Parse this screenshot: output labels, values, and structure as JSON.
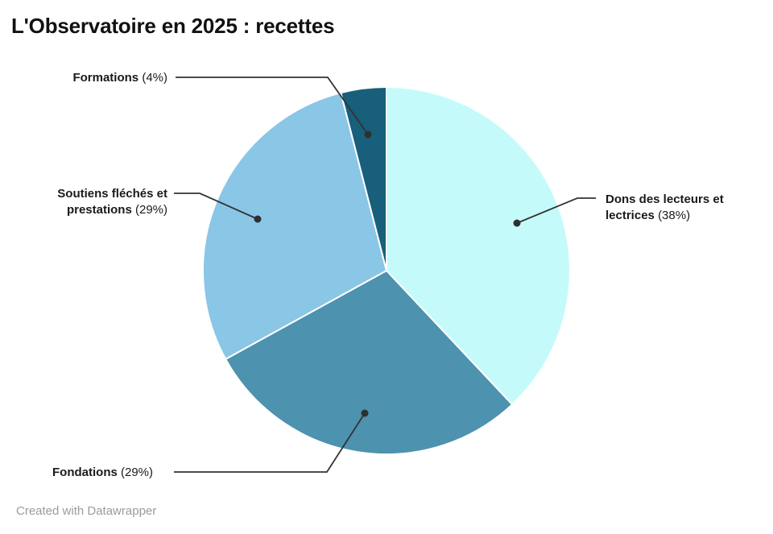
{
  "header": {
    "title": "L'Observatoire en 2025 : recettes"
  },
  "footer": {
    "credit": "Created with Datawrapper"
  },
  "chart_data": {
    "type": "pie",
    "title": "L'Observatoire en 2025 : recettes",
    "unit": "%",
    "start_angle_deg": -90,
    "direction": "clockwise",
    "legend_position": "outside-callouts",
    "separator_color": "#ffffff",
    "connector_color": "#333333",
    "slices": [
      {
        "label": "Dons des lecteurs et lectrices",
        "value": 38,
        "pct_label": "(38%)",
        "color": "#c4fbfa"
      },
      {
        "label": "Fondations",
        "value": 29,
        "pct_label": "(29%)",
        "color": "#4d92ae"
      },
      {
        "label": "Soutiens fléchés et prestations",
        "value": 29,
        "pct_label": "(29%)",
        "color": "#8ac6e6"
      },
      {
        "label": "Formations",
        "value": 4,
        "pct_label": "(4%)",
        "color": "#175f7a"
      }
    ]
  }
}
